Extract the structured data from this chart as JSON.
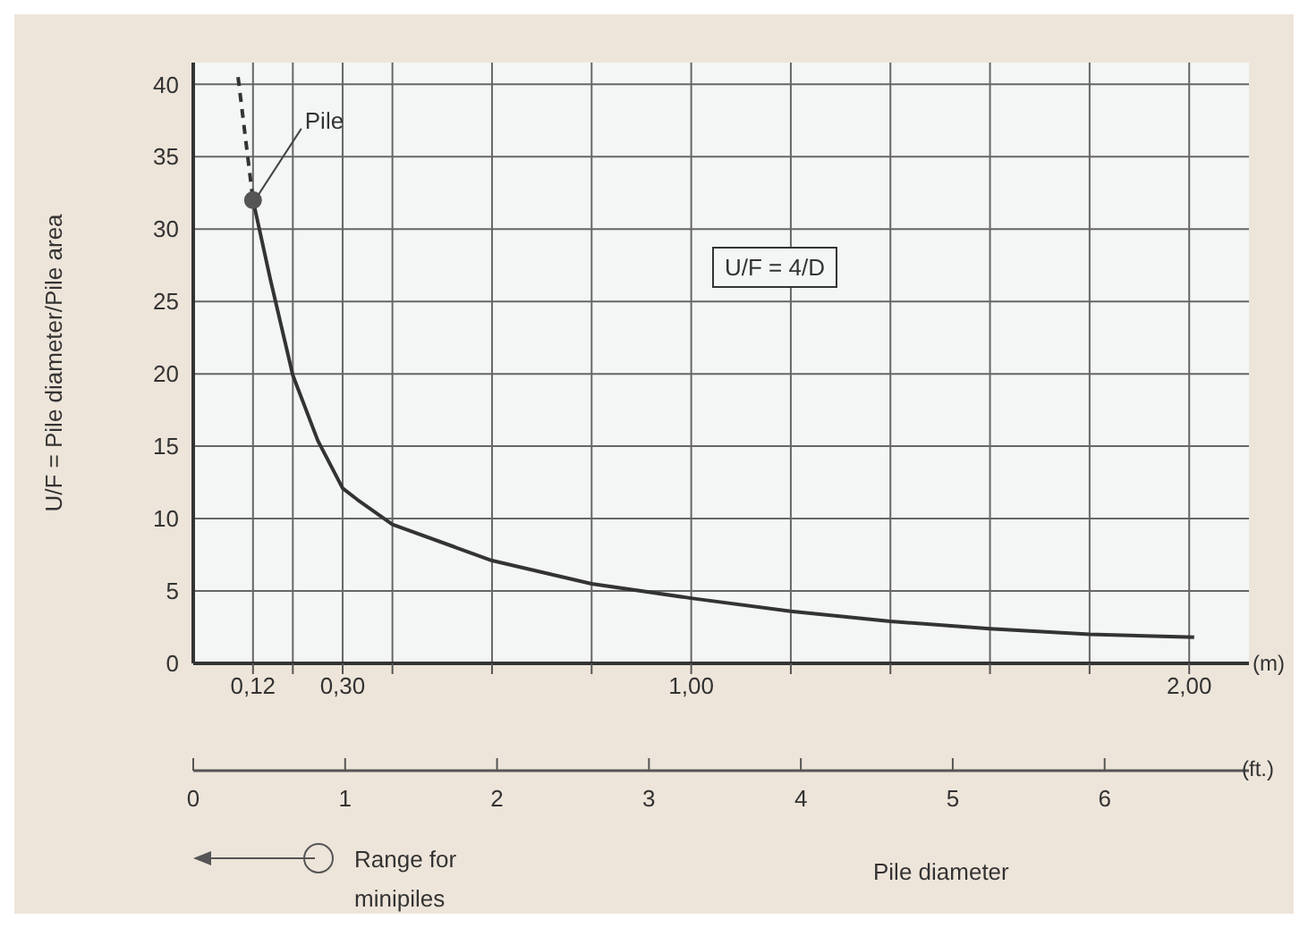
{
  "chart_data": {
    "type": "line",
    "ylabel": "U/F = Pile diameter/Pile area",
    "xlabel": "(m)",
    "x2label": "(ft.)",
    "xlim": [
      0,
      2.12
    ],
    "xticks": [
      {
        "value": 0.12,
        "label": "0,12"
      },
      {
        "value": 0.2,
        "label": null
      },
      {
        "value": 0.3,
        "label": "0,30"
      },
      {
        "value": 0.4,
        "label": null
      },
      {
        "value": 0.6,
        "label": null
      },
      {
        "value": 0.8,
        "label": null
      },
      {
        "value": 1,
        "label": "1,00"
      },
      {
        "value": 1.2,
        "label": null
      },
      {
        "value": 1.4,
        "label": null
      },
      {
        "value": 1.6,
        "label": null
      },
      {
        "value": 1.8,
        "label": null
      },
      {
        "value": 2,
        "label": "2,00"
      }
    ],
    "x2lim": [
      0,
      6.95
    ],
    "x2ticks": [
      0,
      1,
      2,
      3,
      4,
      5,
      6
    ],
    "ylim": [
      0,
      41.5
    ],
    "yticks": [
      0,
      5,
      10,
      15,
      20,
      25,
      30,
      35,
      40
    ],
    "grid": true,
    "series": [
      {
        "type": "line",
        "line_style": "dashed",
        "color": "#333333",
        "x": [
          0.09,
          0.12
        ],
        "values": [
          40.5,
          32
        ]
      },
      {
        "type": "line",
        "line_style": "solid",
        "color": "#333333",
        "x": [
          0.12,
          0.155,
          0.2,
          0.25,
          0.3,
          0.33,
          0.4,
          0.6,
          0.8,
          1,
          1.2,
          1.4,
          1.6,
          1.8,
          2.01
        ],
        "values": [
          32,
          26.5,
          19.9,
          15.4,
          12.1,
          11.3,
          9.6,
          7.1,
          5.5,
          4.5,
          3.6,
          2.9,
          2.4,
          2,
          1.8
        ]
      },
      {
        "type": "scatter",
        "marker": "circle",
        "color": "#555555",
        "x": [
          0.12
        ],
        "values": [
          32
        ]
      }
    ],
    "annotations": [
      {
        "text": "Pile",
        "x": 0.12,
        "y": 32
      },
      "U/F = 4/D",
      "Range for minipiles",
      "Pile diameter"
    ]
  }
}
